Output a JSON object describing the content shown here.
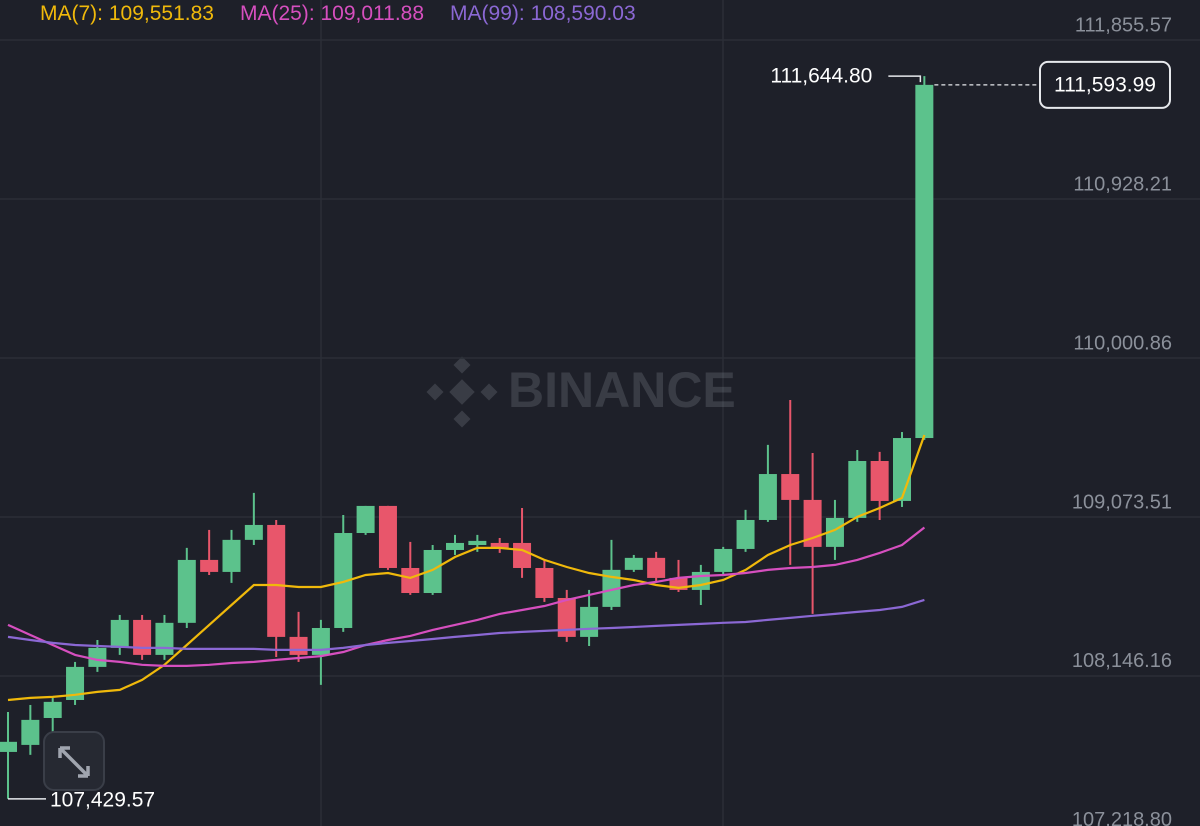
{
  "chart_data": {
    "type": "candlestick",
    "up_color": "#5cc28c",
    "down_color": "#e8566b",
    "watermark": "BINANCE",
    "ylim": [
      107271,
      112089
    ],
    "yticks": [
      {
        "value": 111855.57,
        "label": "111,855.57"
      },
      {
        "value": 110928.21,
        "label": "110,928.21"
      },
      {
        "value": 110000.86,
        "label": "110,000.86"
      },
      {
        "value": 109073.51,
        "label": "109,073.51"
      },
      {
        "value": 108146.16,
        "label": "108,146.16"
      },
      {
        "value": 107218.8,
        "label": "107,218.80"
      }
    ],
    "grid": true,
    "open": [
      107703,
      107744,
      107901,
      108006,
      108199,
      108310,
      108473,
      108269,
      108456,
      108823,
      108753,
      108940,
      109027,
      108374,
      108269,
      108426,
      108980,
      109138,
      108776,
      108630,
      108881,
      108910,
      108922,
      108922,
      108776,
      108601,
      108374,
      108549,
      108765,
      108835,
      108718,
      108648,
      108753,
      108887,
      109056,
      109324,
      109173,
      108899,
      109068,
      109400,
      109167,
      109534
    ],
    "high": [
      107936,
      107977,
      108018,
      108228,
      108356,
      108502,
      108502,
      108502,
      108893,
      108998,
      108998,
      109214,
      109056,
      108520,
      108473,
      109085,
      109138,
      109138,
      108928,
      108910,
      108969,
      108969,
      108951,
      109126,
      108823,
      108648,
      108648,
      108940,
      108852,
      108870,
      108823,
      108794,
      108899,
      109115,
      109494,
      109756,
      109447,
      109173,
      109464,
      109453,
      109569,
      111644.8
    ],
    "low": [
      107429.57,
      107686,
      107744,
      107977,
      108170,
      108269,
      108240,
      108240,
      108426,
      108735,
      108689,
      108910,
      108257,
      108228,
      108094,
      108403,
      108969,
      108765,
      108619,
      108619,
      108852,
      108870,
      108864,
      108718,
      108578,
      108345,
      108321,
      108531,
      108753,
      108695,
      108636,
      108560,
      108735,
      108870,
      109045,
      108794,
      108508,
      108823,
      109045,
      109056,
      109132,
      109523
    ],
    "close": [
      107762,
      107890,
      107995,
      108199,
      108310,
      108473,
      108269,
      108456,
      108823,
      108753,
      108940,
      109027,
      108374,
      108269,
      108426,
      108980,
      109138,
      108776,
      108630,
      108881,
      108922,
      108934,
      108893,
      108776,
      108601,
      108374,
      108549,
      108765,
      108835,
      108718,
      108648,
      108753,
      108887,
      109056,
      109324,
      109173,
      108899,
      109068,
      109400,
      109167,
      109534,
      111593.99
    ],
    "series": [
      {
        "name": "MA(7)",
        "color": "#f0b90b",
        "last_value_label": "109,551.83",
        "values": [
          108006,
          108018,
          108024,
          108036,
          108053,
          108065,
          108123,
          108211,
          108327,
          108444,
          108560,
          108677,
          108677,
          108665,
          108665,
          108695,
          108735,
          108747,
          108718,
          108765,
          108840,
          108893,
          108893,
          108881,
          108823,
          108782,
          108747,
          108724,
          108706,
          108677,
          108660,
          108677,
          108706,
          108765,
          108852,
          108910,
          108951,
          108998,
          109074,
          109126,
          109185,
          109551.83
        ]
      },
      {
        "name": "MA(25)",
        "color": "#d64fbf",
        "last_value_label": "109,011.88",
        "values": [
          108444,
          108385,
          108327,
          108269,
          108240,
          108228,
          108211,
          108205,
          108205,
          108211,
          108222,
          108228,
          108240,
          108251,
          108262,
          108286,
          108327,
          108356,
          108380,
          108415,
          108444,
          108473,
          108508,
          108531,
          108554,
          108590,
          108619,
          108648,
          108677,
          108695,
          108718,
          108729,
          108735,
          108747,
          108765,
          108776,
          108782,
          108794,
          108823,
          108864,
          108910,
          109011.88
        ]
      },
      {
        "name": "MA(99)",
        "color": "#8b68d4",
        "last_value_label": "108,590.03",
        "values": [
          108374,
          108356,
          108339,
          108327,
          108321,
          108316,
          108310,
          108310,
          108304,
          108304,
          108304,
          108304,
          108298,
          108298,
          108298,
          108310,
          108327,
          108339,
          108350,
          108362,
          108374,
          108385,
          108397,
          108403,
          108409,
          108415,
          108421,
          108426,
          108432,
          108438,
          108444,
          108450,
          108456,
          108461,
          108473,
          108485,
          108497,
          108508,
          108520,
          108531,
          108549,
          108590.03
        ]
      }
    ],
    "high_label": "111,644.80",
    "low_label": "107,429.57",
    "last_price_label": "111,593.99"
  }
}
